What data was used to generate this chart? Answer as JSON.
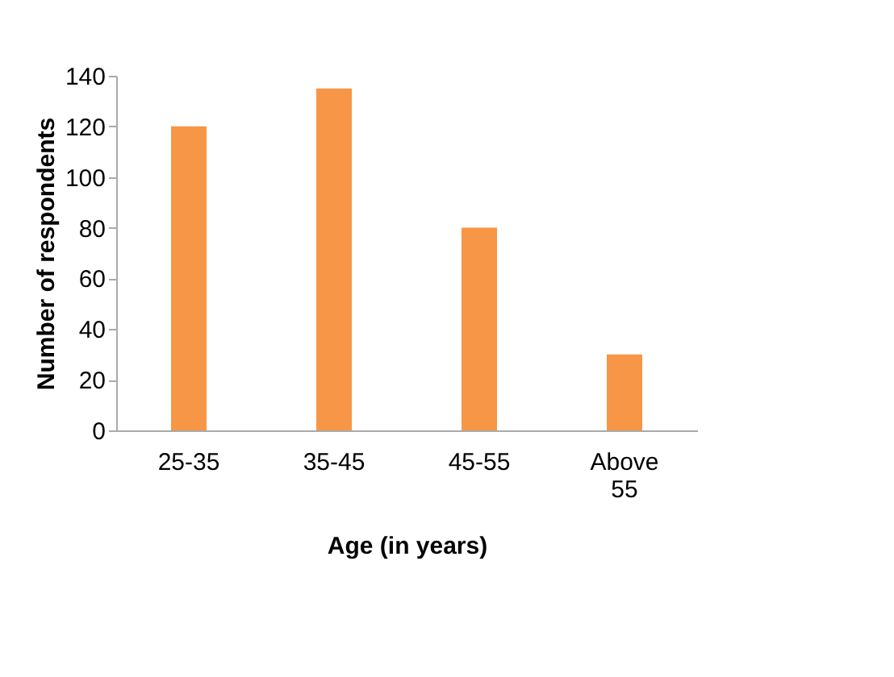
{
  "chart_data": {
    "type": "bar",
    "xlabel": "Age (in years)",
    "ylabel": "Number of respondents",
    "categories": [
      "25-35",
      "35-45",
      "45-55",
      "Above 55"
    ],
    "values": [
      120,
      135,
      80,
      30
    ],
    "color": "#f79646",
    "ylim": [
      0,
      140
    ],
    "yticks": [
      0,
      20,
      40,
      60,
      80,
      100,
      120,
      140
    ],
    "grid": false
  }
}
